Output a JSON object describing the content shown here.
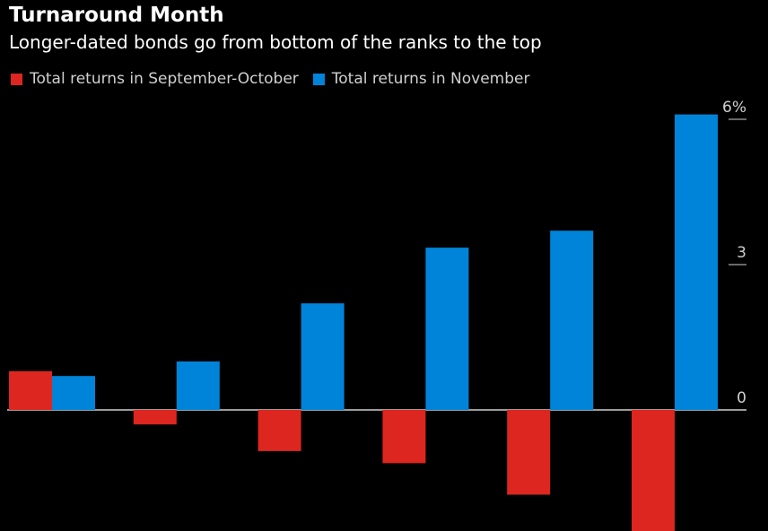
{
  "colors": {
    "series1": "#dd2620",
    "series2": "#0084d9",
    "background": "#000000",
    "text": "#ffffff",
    "tick_text": "#d0d0d0",
    "zero_line": "#cfcfcf"
  },
  "chart_data": {
    "type": "bar",
    "title": "Turnaround Month",
    "subtitle": "Longer-dated bonds go from bottom of the ranks to the top",
    "xlabel": "",
    "ylabel": "",
    "ylim": [
      -2.6,
      6
    ],
    "yticks": [
      {
        "value": 6,
        "label": "6%"
      },
      {
        "value": 3,
        "label": "3"
      },
      {
        "value": 0,
        "label": "0"
      }
    ],
    "categories": [
      "",
      "",
      "",
      "",
      "",
      ""
    ],
    "series": [
      {
        "name": "Total returns in September-October",
        "values": [
          0.8,
          -0.3,
          -0.85,
          -1.1,
          -1.75,
          -2.6
        ]
      },
      {
        "name": "Total returns in November",
        "values": [
          0.7,
          1.0,
          2.2,
          3.35,
          3.7,
          6.1
        ]
      }
    ]
  }
}
